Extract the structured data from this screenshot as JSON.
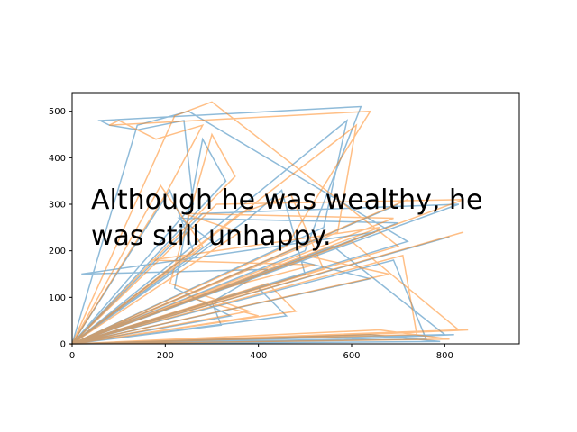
{
  "chart_data": {
    "type": "line",
    "xlim": [
      0,
      960
    ],
    "ylim": [
      0,
      540
    ],
    "x_ticks": [
      0,
      200,
      400,
      600,
      800
    ],
    "y_ticks": [
      0,
      100,
      200,
      300,
      400,
      500
    ],
    "grid": false,
    "legend": "none",
    "series": [
      {
        "color": "#1f77b4",
        "x": [
          0,
          280,
          830,
          0,
          650,
          20,
          420,
          300,
          320,
          0,
          720,
          250,
          140,
          0,
          810,
          0,
          500,
          620,
          60,
          80,
          140,
          240,
          260,
          0,
          700,
          230,
          300,
          0,
          600,
          820,
          0,
          500,
          450,
          380,
          0,
          690,
          760,
          0,
          210,
          260,
          0,
          540,
          590,
          0,
          400,
          460,
          0,
          480,
          640,
          0,
          560,
          800,
          0,
          330,
          280,
          220,
          340,
          0,
          700,
          0,
          640,
          790,
          0
        ],
        "y": [
          0,
          280,
          300,
          0,
          240,
          150,
          160,
          90,
          40,
          0,
          220,
          500,
          470,
          0,
          230,
          0,
          200,
          510,
          480,
          470,
          460,
          480,
          300,
          0,
          260,
          270,
          220,
          0,
          10,
          20,
          0,
          150,
          330,
          270,
          0,
          180,
          10,
          0,
          330,
          200,
          0,
          250,
          480,
          0,
          120,
          60,
          0,
          180,
          140,
          0,
          210,
          20,
          0,
          350,
          440,
          120,
          60,
          0,
          300,
          0,
          20,
          5,
          0
        ]
      },
      {
        "color": "#ff7f0e",
        "x": [
          0,
          310,
          840,
          0,
          660,
          170,
          520,
          250,
          400,
          0,
          700,
          300,
          220,
          0,
          840,
          0,
          460,
          640,
          80,
          100,
          180,
          280,
          200,
          0,
          690,
          240,
          360,
          0,
          620,
          850,
          0,
          540,
          470,
          360,
          0,
          710,
          740,
          0,
          190,
          280,
          0,
          570,
          610,
          0,
          420,
          480,
          0,
          500,
          680,
          0,
          600,
          830,
          0,
          350,
          300,
          210,
          380,
          0,
          720,
          0,
          660,
          810,
          0
        ],
        "y": [
          0,
          300,
          310,
          0,
          250,
          180,
          170,
          100,
          60,
          0,
          210,
          520,
          490,
          0,
          240,
          0,
          210,
          500,
          470,
          480,
          440,
          470,
          320,
          0,
          270,
          280,
          240,
          0,
          20,
          30,
          0,
          160,
          320,
          280,
          0,
          190,
          20,
          0,
          340,
          210,
          0,
          240,
          470,
          0,
          130,
          70,
          0,
          190,
          150,
          0,
          220,
          30,
          0,
          360,
          450,
          130,
          70,
          0,
          310,
          0,
          30,
          10,
          0
        ]
      }
    ],
    "annotation": "Although he was wealthy, he was still unhappy."
  }
}
